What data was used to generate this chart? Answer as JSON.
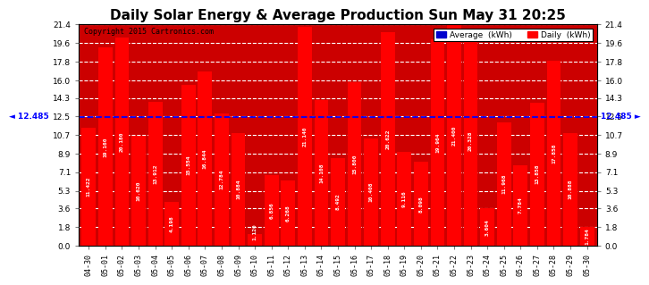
{
  "title": "Daily Solar Energy & Average Production Sun May 31 20:25",
  "copyright": "Copyright 2015 Cartronics.com",
  "categories": [
    "04-30",
    "05-01",
    "05-02",
    "05-03",
    "05-04",
    "05-05",
    "05-06",
    "05-07",
    "05-08",
    "05-09",
    "05-10",
    "05-11",
    "05-12",
    "05-13",
    "05-14",
    "05-15",
    "05-16",
    "05-17",
    "05-18",
    "05-19",
    "05-20",
    "05-21",
    "05-22",
    "05-23",
    "05-24",
    "05-25",
    "05-26",
    "05-27",
    "05-28",
    "05-29",
    "05-30"
  ],
  "values": [
    11.422,
    19.16,
    20.18,
    10.62,
    13.912,
    4.198,
    15.554,
    16.844,
    12.784,
    10.884,
    1.12,
    6.856,
    6.268,
    21.14,
    14.108,
    8.492,
    15.8,
    10.408,
    20.622,
    9.116,
    8.098,
    19.964,
    21.4,
    20.328,
    3.604,
    11.968,
    7.784,
    13.858,
    17.858,
    10.888,
    1.784
  ],
  "average": 12.485,
  "bar_color": "#ff0000",
  "bg_fill_color": "#cc0000",
  "average_line_color": "#0000ff",
  "background_color": "#ffffff",
  "grid_color": "#ffffff",
  "ylim": [
    0,
    21.4
  ],
  "yticks_left": [
    0.0,
    1.8,
    3.6,
    5.3,
    7.1,
    8.9,
    10.7,
    12.5,
    14.3,
    16.0,
    17.8,
    19.6,
    21.4
  ],
  "ytick_labels_left": [
    "0.0",
    "1.8",
    "3.6",
    "5.3",
    "7.1",
    "8.9",
    "10.7",
    "12.5",
    "14.3",
    "16.0",
    "17.8",
    "19.6",
    "21.4"
  ],
  "title_fontsize": 11,
  "legend_avg_color": "#0000cd",
  "legend_daily_color": "#ff0000",
  "avg_left_label": "◄ 12.485",
  "avg_right_label": "12.485 ►"
}
